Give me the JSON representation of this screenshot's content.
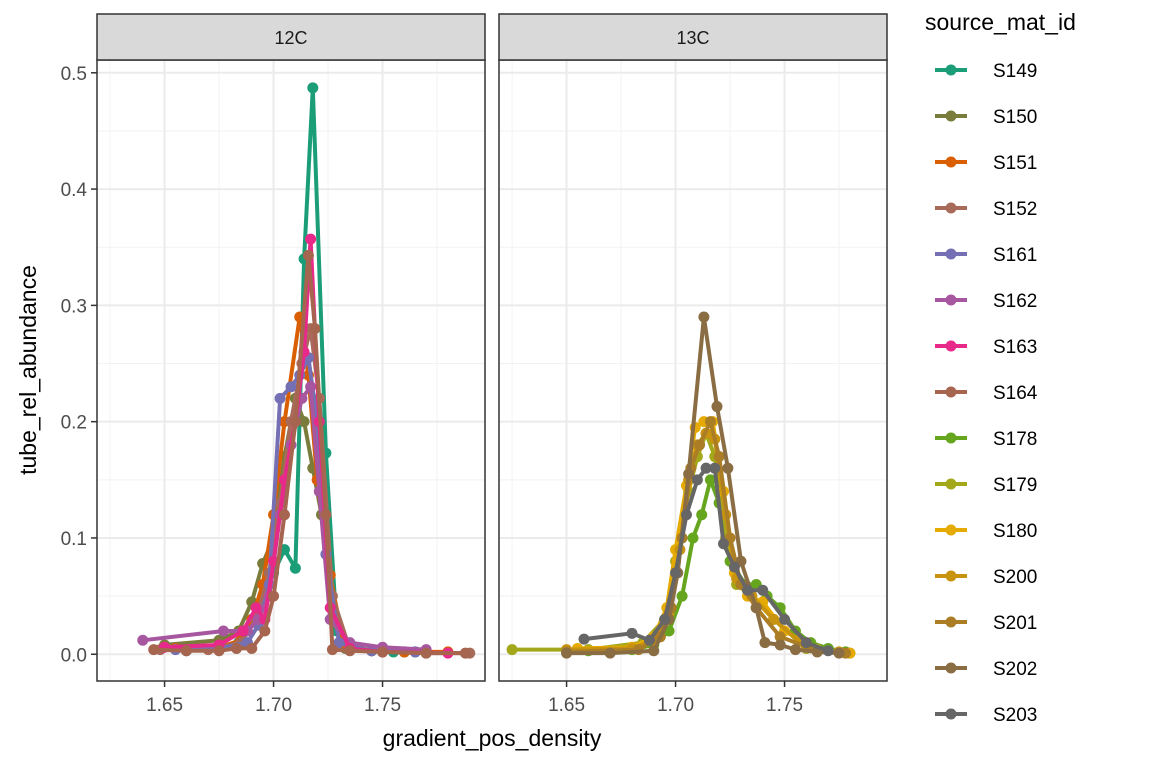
{
  "chart_data": {
    "type": "line",
    "xlabel": "gradient_pos_density",
    "ylabel": "tube_rel_abundance",
    "xlim": [
      1.619,
      1.797
    ],
    "ylim": [
      -0.023,
      0.511
    ],
    "x_ticks": [
      "1.65",
      "1.70",
      "1.75"
    ],
    "x_tick_values": [
      1.65,
      1.7,
      1.75
    ],
    "y_ticks": [
      "0.0",
      "0.1",
      "0.2",
      "0.3",
      "0.4",
      "0.5"
    ],
    "y_tick_values": [
      0,
      0.1,
      0.2,
      0.3,
      0.4,
      0.5
    ],
    "grid": true,
    "legend": {
      "title": "source_mat_id",
      "placement": "right"
    },
    "facets": [
      {
        "label": "12C",
        "series": [
          {
            "name": "S149",
            "color": "#1B9E77",
            "x": [
              1.66,
              1.675,
              1.684,
              1.69,
              1.695,
              1.7,
              1.705,
              1.71,
              1.714,
              1.718,
              1.724,
              1.729,
              1.735,
              1.745,
              1.755,
              1.765
            ],
            "y": [
              0.003,
              0.005,
              0.01,
              0.03,
              0.05,
              0.07,
              0.09,
              0.074,
              0.34,
              0.487,
              0.173,
              0.02,
              0.005,
              0.003,
              0.002,
              0.002
            ]
          },
          {
            "name": "S150",
            "color": "#7A7C3C",
            "x": [
              1.65,
              1.675,
              1.684,
              1.69,
              1.695,
              1.7,
              1.705,
              1.71,
              1.714,
              1.718,
              1.722,
              1.727,
              1.733,
              1.745,
              1.76
            ],
            "y": [
              0.008,
              0.012,
              0.02,
              0.045,
              0.078,
              0.1,
              0.17,
              0.22,
              0.2,
              0.16,
              0.12,
              0.03,
              0.005,
              0.003,
              0.002
            ]
          },
          {
            "name": "S151",
            "color": "#D95F02",
            "x": [
              1.655,
              1.675,
              1.685,
              1.69,
              1.695,
              1.7,
              1.705,
              1.712,
              1.716,
              1.72,
              1.726,
              1.732,
              1.745,
              1.76,
              1.78
            ],
            "y": [
              0.005,
              0.006,
              0.012,
              0.03,
              0.06,
              0.12,
              0.2,
              0.29,
              0.24,
              0.15,
              0.068,
              0.01,
              0.003,
              0.002,
              0.002
            ]
          },
          {
            "name": "S152",
            "color": "#A86B5A",
            "x": [
              1.648,
              1.67,
              1.685,
              1.692,
              1.698,
              1.703,
              1.708,
              1.713,
              1.717,
              1.721,
              1.727,
              1.735,
              1.75,
              1.77,
              1.79
            ],
            "y": [
              0.004,
              0.004,
              0.01,
              0.03,
              0.07,
              0.13,
              0.2,
              0.25,
              0.28,
              0.22,
              0.05,
              0.004,
              0.002,
              0.001,
              0.001
            ]
          },
          {
            "name": "S161",
            "color": "#7570B3",
            "x": [
              1.655,
              1.675,
              1.688,
              1.693,
              1.698,
              1.703,
              1.708,
              1.712,
              1.716,
              1.72,
              1.724,
              1.73,
              1.745,
              1.765
            ],
            "y": [
              0.004,
              0.005,
              0.01,
              0.025,
              0.06,
              0.22,
              0.23,
              0.24,
              0.255,
              0.2,
              0.086,
              0.01,
              0.003,
              0.002
            ]
          },
          {
            "name": "S162",
            "color": "#A6579F",
            "x": [
              1.64,
              1.677,
              1.688,
              1.693,
              1.698,
              1.703,
              1.708,
              1.713,
              1.717,
              1.721,
              1.726,
              1.735,
              1.75,
              1.77
            ],
            "y": [
              0.012,
              0.02,
              0.02,
              0.03,
              0.05,
              0.12,
              0.18,
              0.22,
              0.23,
              0.14,
              0.03,
              0.01,
              0.006,
              0.004
            ]
          },
          {
            "name": "S163",
            "color": "#E7298A",
            "x": [
              1.65,
              1.675,
              1.686,
              1.692,
              1.696,
              1.7,
              1.705,
              1.71,
              1.714,
              1.717,
              1.721,
              1.726,
              1.735,
              1.75,
              1.78
            ],
            "y": [
              0.006,
              0.008,
              0.02,
              0.04,
              0.03,
              0.08,
              0.15,
              0.2,
              0.26,
              0.357,
              0.2,
              0.04,
              0.005,
              0.002,
              0.001
            ]
          },
          {
            "name": "S164",
            "color": "#A6654F",
            "x": [
              1.645,
              1.66,
              1.675,
              1.683,
              1.69,
              1.696,
              1.7,
              1.705,
              1.71,
              1.716,
              1.719,
              1.724,
              1.727,
              1.735,
              1.75,
              1.77,
              1.788
            ],
            "y": [
              0.004,
              0.003,
              0.003,
              0.005,
              0.005,
              0.02,
              0.05,
              0.12,
              0.2,
              0.343,
              0.28,
              0.12,
              0.004,
              0.003,
              0.002,
              0.001,
              0.001
            ]
          }
        ]
      },
      {
        "label": "13C",
        "series": [
          {
            "name": "S178",
            "color": "#66A61E",
            "x": [
              1.66,
              1.68,
              1.69,
              1.697,
              1.703,
              1.708,
              1.712,
              1.716,
              1.72,
              1.725,
              1.732,
              1.737,
              1.742,
              1.748,
              1.755,
              1.762,
              1.77,
              1.778
            ],
            "y": [
              0.003,
              0.004,
              0.008,
              0.02,
              0.05,
              0.1,
              0.12,
              0.15,
              0.13,
              0.08,
              0.06,
              0.06,
              0.05,
              0.04,
              0.02,
              0.01,
              0.005,
              0.002
            ]
          },
          {
            "name": "S179",
            "color": "#A3A81B",
            "x": [
              1.625,
              1.66,
              1.685,
              1.695,
              1.7,
              1.706,
              1.71,
              1.714,
              1.718,
              1.723,
              1.728,
              1.735,
              1.745,
              1.76,
              1.78
            ],
            "y": [
              0.004,
              0.004,
              0.01,
              0.03,
              0.08,
              0.14,
              0.17,
              0.19,
              0.17,
              0.1,
              0.06,
              0.05,
              0.03,
              0.005,
              0.001
            ]
          },
          {
            "name": "S180",
            "color": "#E6AB02",
            "x": [
              1.655,
              1.68,
              1.69,
              1.696,
              1.7,
              1.705,
              1.709,
              1.713,
              1.717,
              1.722,
              1.727,
              1.733,
              1.74,
              1.75,
              1.765,
              1.78
            ],
            "y": [
              0.005,
              0.006,
              0.015,
              0.04,
              0.09,
              0.145,
              0.195,
              0.2,
              0.2,
              0.14,
              0.07,
              0.05,
              0.045,
              0.02,
              0.004,
              0.001
            ]
          },
          {
            "name": "S200",
            "color": "#C8930F",
            "x": [
              1.65,
              1.68,
              1.69,
              1.697,
              1.702,
              1.706,
              1.71,
              1.714,
              1.718,
              1.723,
              1.728,
              1.735,
              1.745,
              1.76,
              1.775
            ],
            "y": [
              0.004,
              0.005,
              0.012,
              0.035,
              0.09,
              0.15,
              0.18,
              0.19,
              0.185,
              0.12,
              0.065,
              0.05,
              0.03,
              0.006,
              0.002
            ]
          },
          {
            "name": "S201",
            "color": "#AB7E26",
            "x": [
              1.65,
              1.683,
              1.693,
              1.698,
              1.703,
              1.707,
              1.711,
              1.716,
              1.72,
              1.725,
              1.73,
              1.737,
              1.748,
              1.765,
              1.778
            ],
            "y": [
              0.002,
              0.004,
              0.015,
              0.04,
              0.1,
              0.16,
              0.18,
              0.2,
              0.17,
              0.1,
              0.06,
              0.04,
              0.015,
              0.003,
              0.001
            ]
          },
          {
            "name": "S202",
            "color": "#8A6D43",
            "x": [
              1.65,
              1.67,
              1.69,
              1.697,
              1.701,
              1.706,
              1.713,
              1.719,
              1.724,
              1.73,
              1.737,
              1.741,
              1.748,
              1.755,
              1.765,
              1.775
            ],
            "y": [
              0.001,
              0.001,
              0.003,
              0.03,
              0.07,
              0.155,
              0.29,
              0.213,
              0.16,
              0.08,
              0.04,
              0.01,
              0.008,
              0.004,
              0.002,
              0.001
            ]
          },
          {
            "name": "S203",
            "color": "#666666",
            "x": [
              1.658,
              1.68,
              1.688,
              1.695,
              1.7,
              1.705,
              1.71,
              1.714,
              1.718,
              1.722,
              1.727,
              1.733,
              1.74,
              1.75,
              1.76,
              1.77
            ],
            "y": [
              0.013,
              0.018,
              0.012,
              0.03,
              0.07,
              0.12,
              0.15,
              0.16,
              0.16,
              0.095,
              0.075,
              0.055,
              0.055,
              0.03,
              0.01,
              0.003
            ]
          }
        ]
      }
    ]
  }
}
